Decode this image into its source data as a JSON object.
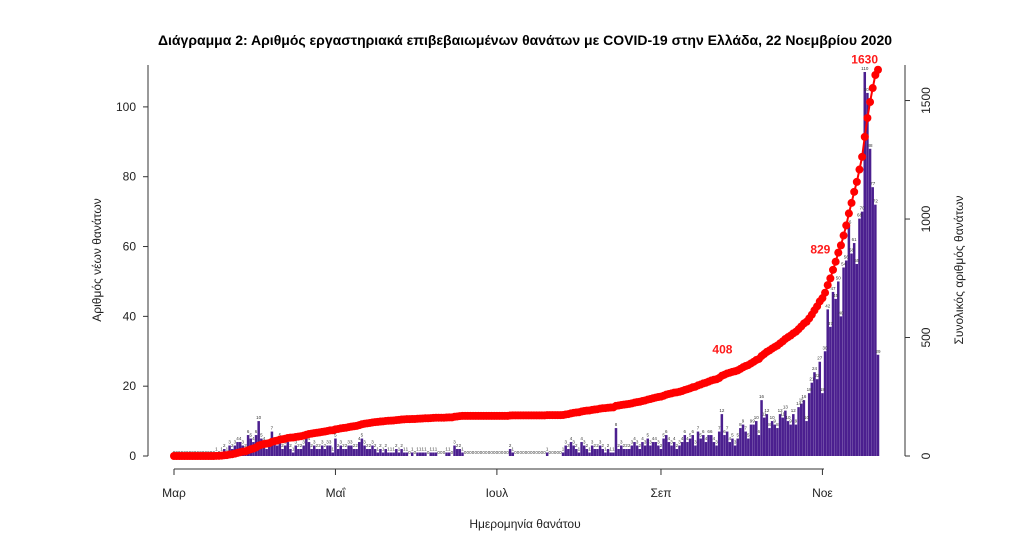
{
  "chart_data": {
    "type": "bar",
    "title": "Διάγραμμα 2: Αριθμός εργαστηριακά επιβεβαιωμένων θανάτων με COVID-19 στην Ελλάδα, 22 Νοεμβρίου 2020",
    "xlabel": "Ημερομηνία θανάτου",
    "ylabel": "Αριθμός νέων θανάτων",
    "y2label": "Συνολικός αριθμός θανάτων",
    "ylim": [
      0,
      112
    ],
    "y2lim": [
      0,
      1650
    ],
    "x_range_days": [
      1,
      267
    ],
    "x_ticks": [
      {
        "label": "Μαρ",
        "day": 1
      },
      {
        "label": "Μαΐ",
        "day": 62
      },
      {
        "label": "Ιουλ",
        "day": 123
      },
      {
        "label": "Σεπ",
        "day": 185
      },
      {
        "label": "Νοε",
        "day": 246
      }
    ],
    "y_ticks": [
      0,
      20,
      40,
      60,
      80,
      100
    ],
    "y2_ticks": [
      0,
      500,
      1000,
      1500
    ],
    "grid": false,
    "series": [
      {
        "type": "bar",
        "color": "#4b1f8f",
        "axis": "left",
        "values": [
          0,
          0,
          0,
          0,
          0,
          0,
          0,
          0,
          0,
          0,
          0,
          0,
          0,
          0,
          0,
          0,
          1,
          0,
          1,
          2,
          1,
          3,
          2,
          3,
          4,
          4,
          3,
          2,
          6,
          5,
          4,
          6,
          10,
          5,
          4,
          2,
          3,
          7,
          4,
          3,
          5,
          2,
          3,
          4,
          2,
          1,
          3,
          2,
          2,
          3,
          5,
          4,
          2,
          3,
          2,
          2,
          3,
          2,
          3,
          3,
          1,
          5,
          2,
          3,
          2,
          2,
          3,
          3,
          2,
          2,
          4,
          5,
          3,
          2,
          2,
          3,
          2,
          1,
          2,
          1,
          2,
          1,
          1,
          1,
          2,
          1,
          2,
          1,
          1,
          0,
          1,
          0,
          1,
          1,
          1,
          1,
          0,
          1,
          1,
          1,
          0,
          0,
          0,
          1,
          1,
          0,
          3,
          2,
          2,
          1,
          0,
          0,
          0,
          0,
          0,
          0,
          0,
          0,
          0,
          0,
          0,
          0,
          0,
          0,
          0,
          0,
          0,
          2,
          1,
          0,
          0,
          0,
          0,
          0,
          0,
          0,
          0,
          0,
          0,
          0,
          0,
          1,
          0,
          0,
          0,
          0,
          0,
          1,
          3,
          2,
          4,
          3,
          2,
          1,
          4,
          3,
          2,
          1,
          3,
          2,
          2,
          3,
          2,
          1,
          2,
          1,
          1,
          8,
          2,
          3,
          2,
          2,
          2,
          3,
          4,
          3,
          2,
          4,
          3,
          5,
          3,
          4,
          4,
          3,
          2,
          5,
          6,
          4,
          3,
          4,
          2,
          3,
          4,
          6,
          4,
          5,
          6,
          3,
          7,
          5,
          6,
          4,
          6,
          6,
          4,
          3,
          7,
          12,
          6,
          7,
          4,
          5,
          3,
          5,
          8,
          9,
          7,
          5,
          9,
          9,
          10,
          6,
          16,
          11,
          12,
          8,
          10,
          9,
          8,
          12,
          11,
          13,
          10,
          9,
          12,
          9,
          14,
          15,
          16,
          10,
          18,
          21,
          24,
          22,
          27,
          18,
          30,
          42,
          37,
          47,
          45,
          50,
          40,
          54,
          56,
          66,
          58,
          61,
          55,
          68,
          70,
          110,
          104,
          88,
          77,
          72,
          29
        ]
      },
      {
        "type": "cumulative-line",
        "color": "#ff0000",
        "axis": "right",
        "final_total": 1630
      }
    ],
    "annotations": [
      {
        "text": "408",
        "day": 212,
        "value": 408
      },
      {
        "text": "829",
        "day": 249,
        "value": 829
      },
      {
        "text": "1630",
        "day": 267,
        "value": 1630
      }
    ]
  }
}
